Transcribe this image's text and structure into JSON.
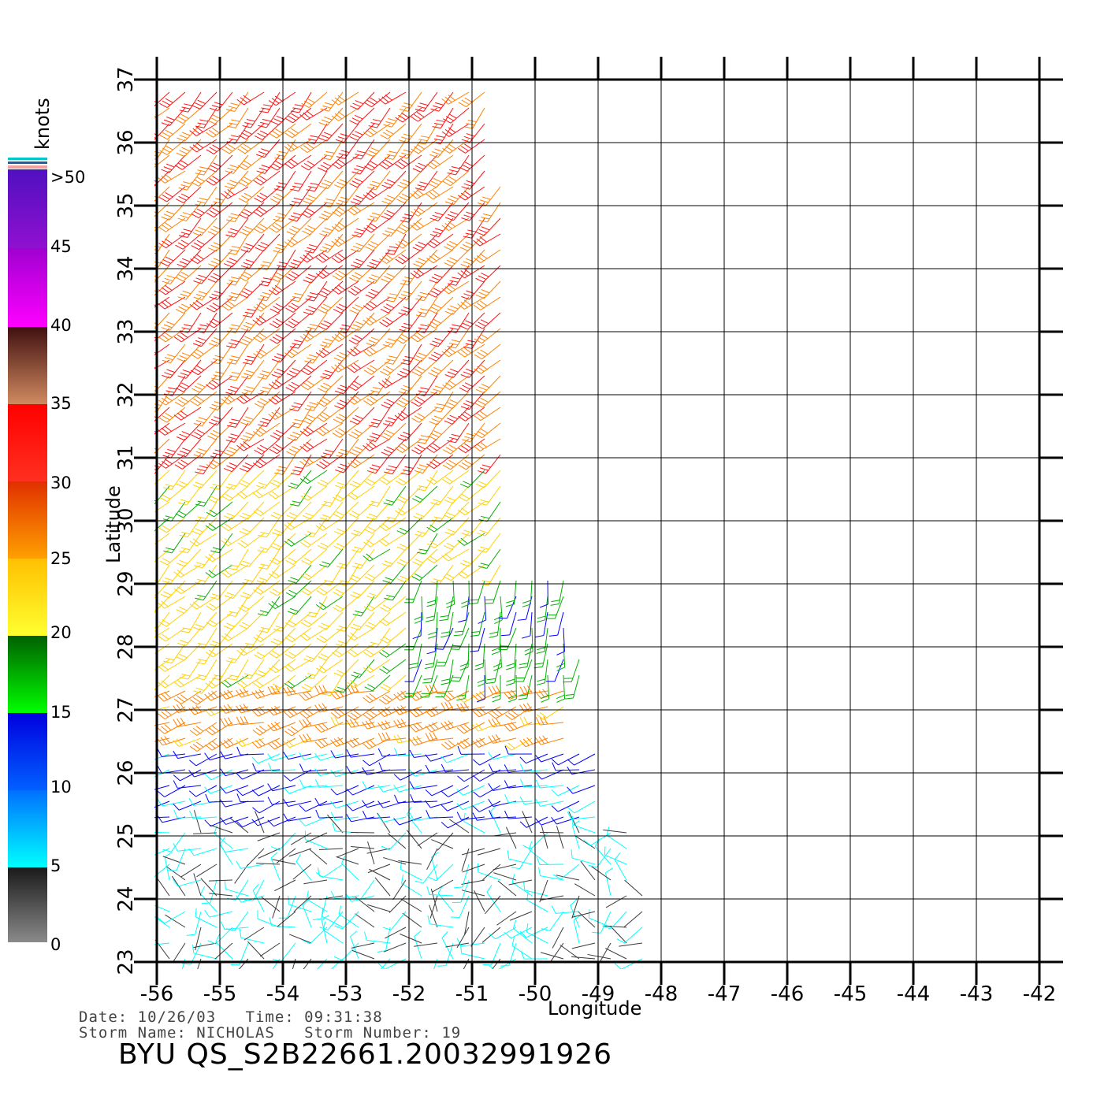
{
  "map": {
    "type": "wind-barb-map",
    "xlabel": "Longitude",
    "ylabel": "Latitude",
    "lon_range": [
      -56,
      -42
    ],
    "lat_range": [
      23,
      37
    ],
    "lon_ticks": [
      "-56",
      "-55",
      "-54",
      "-53",
      "-52",
      "-51",
      "-50",
      "-49",
      "-48",
      "-47",
      "-46",
      "-45",
      "-44",
      "-43",
      "-42"
    ],
    "lat_ticks": [
      "23",
      "24",
      "25",
      "26",
      "27",
      "28",
      "29",
      "30",
      "31",
      "32",
      "33",
      "34",
      "35",
      "36",
      "37"
    ],
    "grid": true,
    "swath_east_edge_lon_by_lat": [
      {
        "lat": 37,
        "lon": -50.7
      },
      {
        "lat": 34,
        "lon": -50.4
      },
      {
        "lat": 32,
        "lon": -50.0
      },
      {
        "lat": 30,
        "lon": -49.5
      },
      {
        "lat": 28,
        "lon": -49.3
      },
      {
        "lat": 26,
        "lon": -48.8
      },
      {
        "lat": 23,
        "lon": -48.0
      }
    ],
    "wind_regions": [
      {
        "lat_from": 31.0,
        "lat_to": 37.0,
        "lon_from": -56,
        "lon_to": -50.5,
        "speed_knots": 30,
        "direction_deg": 225
      },
      {
        "lat_from": 27.5,
        "lat_to": 31.0,
        "lon_from": -56,
        "lon_to": -50.5,
        "speed_knots": 22,
        "direction_deg": 225
      },
      {
        "lat_from": 27.5,
        "lat_to": 29.2,
        "lon_from": -51.8,
        "lon_to": -49.3,
        "speed_knots": 17,
        "direction_deg": 190
      },
      {
        "lat_from": 26.5,
        "lat_to": 27.5,
        "lon_from": -56,
        "lon_to": -49.5,
        "speed_knots": 27,
        "direction_deg": 250
      },
      {
        "lat_from": 25.2,
        "lat_to": 26.5,
        "lon_from": -56,
        "lon_to": -49.0,
        "speed_knots": 11,
        "direction_deg": 255
      },
      {
        "lat_from": 23.0,
        "lat_to": 25.2,
        "lon_from": -56,
        "lon_to": -48.2,
        "speed_knots": 5,
        "direction_deg": 270
      }
    ]
  },
  "colorbar": {
    "title": "knots",
    "labels": [
      ">50",
      "45",
      "40",
      "35",
      "30",
      "25",
      "20",
      "15",
      "10",
      "5",
      "0"
    ],
    "colors": {
      "gray": "#3a3a3a",
      "cyan": "#00ffff",
      "blue": "#0000ff",
      "green": "#00b000",
      "yellow": "#ffd000",
      "orange": "#ff8000",
      "red": "#ff1010",
      "brown": "#6a2a1a",
      "magenta": "#ff00ff",
      "purple": "#6a10c8"
    }
  },
  "meta": {
    "date_label": "Date:",
    "date": "10/26/03",
    "time_label": "Time:",
    "time": "09:31:38",
    "storm_name_label": "Storm Name:",
    "storm_name": "NICHOLAS",
    "storm_number_label": "Storm Number:",
    "storm_number": "19",
    "product": "BYU QS_S2B22661.20032991926"
  }
}
